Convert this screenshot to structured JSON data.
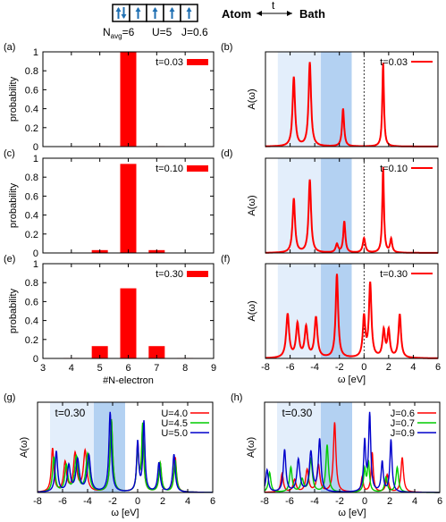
{
  "header": {
    "atom_label": "Atom",
    "bath_label": "Bath",
    "hop_label": "t",
    "params": {
      "navg_base": "N",
      "navg_sub": "avg",
      "navg_val": "=6",
      "u": "U=5",
      "j": "J=0.6"
    },
    "arrows": [
      "up-down",
      "up",
      "up",
      "up",
      "up"
    ]
  },
  "colors": {
    "bar": "#ff0000",
    "spec": "#ff0000",
    "shade_light": "#e3eefb",
    "shade_dark": "#b3d1f2",
    "u40": "#ff0000",
    "u45": "#00cc00",
    "u50": "#0000cc",
    "j06": "#ff0000",
    "j07": "#00cc00",
    "j09": "#0000cc"
  },
  "chart_data": [
    {
      "id": "a",
      "panel_label": "(a)",
      "type": "bar",
      "legend": "t=0.03",
      "ylabel": "probability",
      "categories": [
        4,
        5,
        6,
        7,
        8
      ],
      "values": [
        0.002,
        0.005,
        1.0,
        0.005,
        0.002
      ],
      "xlim": [
        3,
        9
      ],
      "ylim": [
        0,
        1
      ],
      "yticks": [
        0,
        0.2,
        0.4,
        0.6,
        0.8,
        1
      ],
      "xticks": []
    },
    {
      "id": "c",
      "panel_label": "(c)",
      "type": "bar",
      "legend": "t=0.10",
      "ylabel": "probability",
      "categories": [
        4,
        5,
        6,
        7,
        8
      ],
      "values": [
        0.003,
        0.03,
        0.94,
        0.03,
        0.003
      ],
      "xlim": [
        3,
        9
      ],
      "ylim": [
        0,
        1
      ],
      "yticks": [
        0,
        0.2,
        0.4,
        0.6,
        0.8,
        1
      ],
      "xticks": []
    },
    {
      "id": "e",
      "panel_label": "(e)",
      "type": "bar",
      "legend": "t=0.30",
      "ylabel": "probability",
      "xlabel": "#N-electron",
      "categories": [
        4,
        5,
        6,
        7,
        8
      ],
      "values": [
        0.005,
        0.13,
        0.74,
        0.13,
        0.005
      ],
      "xlim": [
        3,
        9
      ],
      "ylim": [
        0,
        1
      ],
      "yticks": [
        0,
        0.2,
        0.4,
        0.6,
        0.8,
        1
      ],
      "xticks": [
        3,
        4,
        5,
        6,
        7,
        8,
        9
      ]
    },
    {
      "id": "b",
      "panel_label": "(b)",
      "type": "line",
      "legend": "t=0.03",
      "ylabel": "A(ω)",
      "xlim": [
        -8,
        6
      ],
      "xticks": [],
      "shade_light": [
        -7.0,
        -3.5
      ],
      "shade_dark": [
        -3.5,
        -1.0
      ],
      "zero_line": 0,
      "series": [
        {
          "peaks": [
            [
              -5.7,
              0.66,
              0.12
            ],
            [
              -4.4,
              0.8,
              0.12
            ],
            [
              -1.7,
              0.36,
              0.1
            ],
            [
              1.55,
              0.8,
              0.08
            ]
          ]
        }
      ]
    },
    {
      "id": "d",
      "panel_label": "(d)",
      "type": "line",
      "legend": "t=0.10",
      "ylabel": "A(ω)",
      "xlim": [
        -8,
        6
      ],
      "xticks": [],
      "shade_light": [
        -7.0,
        -3.5
      ],
      "shade_dark": [
        -3.5,
        -1.0
      ],
      "zero_line": 0,
      "series": [
        {
          "peaks": [
            [
              -5.7,
              0.52,
              0.12
            ],
            [
              -4.4,
              0.7,
              0.12
            ],
            [
              -2.2,
              0.08,
              0.12
            ],
            [
              -1.6,
              0.3,
              0.1
            ],
            [
              0.0,
              0.14,
              0.12
            ],
            [
              1.55,
              0.82,
              0.08
            ],
            [
              2.2,
              0.13,
              0.1
            ]
          ]
        }
      ]
    },
    {
      "id": "f",
      "panel_label": "(f)",
      "type": "line",
      "legend": "t=0.30",
      "ylabel": "A(ω)",
      "xlabel": "ω [eV]",
      "xlim": [
        -8,
        6
      ],
      "xticks": [
        -8,
        -6,
        -4,
        -2,
        0,
        2,
        4,
        6
      ],
      "shade_light": [
        -7.0,
        -3.5
      ],
      "shade_dark": [
        -3.5,
        -1.0
      ],
      "zero_line": 0,
      "series": [
        {
          "peaks": [
            [
              -6.2,
              0.26,
              0.14
            ],
            [
              -5.4,
              0.2,
              0.14
            ],
            [
              -4.7,
              0.18,
              0.14
            ],
            [
              -3.9,
              0.24,
              0.14
            ],
            [
              -2.2,
              0.5,
              0.12
            ],
            [
              0.0,
              0.24,
              0.12
            ],
            [
              0.5,
              0.44,
              0.12
            ],
            [
              1.6,
              0.16,
              0.12
            ],
            [
              2.0,
              0.16,
              0.12
            ],
            [
              2.9,
              0.26,
              0.12
            ]
          ]
        }
      ]
    },
    {
      "id": "g",
      "panel_label": "(g)",
      "type": "line",
      "inset": "t=0.30",
      "ylabel": "A(ω)",
      "xlabel": "ω [eV]",
      "xlim": [
        -8,
        6
      ],
      "xticks": [
        -8,
        -6,
        -4,
        -2,
        0,
        2,
        4,
        6
      ],
      "shade_light": [
        -7.0,
        -3.5
      ],
      "shade_dark": [
        -3.5,
        -1.0
      ],
      "series": [
        {
          "name": "U=4.0",
          "color_key": "u40",
          "peaks": [
            [
              -6.8,
              0.3,
              0.12
            ],
            [
              -5.8,
              0.2,
              0.14
            ],
            [
              -5.0,
              0.26,
              0.16
            ],
            [
              -4.2,
              0.28,
              0.16
            ],
            [
              -2.1,
              0.5,
              0.12
            ],
            [
              0.0,
              0.32,
              0.1
            ],
            [
              0.4,
              0.44,
              0.1
            ],
            [
              1.8,
              0.2,
              0.12
            ],
            [
              3.0,
              0.24,
              0.12
            ]
          ]
        },
        {
          "name": "U=4.5",
          "color_key": "u45",
          "peaks": [
            [
              -6.7,
              0.24,
              0.12
            ],
            [
              -5.7,
              0.18,
              0.14
            ],
            [
              -4.9,
              0.24,
              0.16
            ],
            [
              -4.0,
              0.26,
              0.16
            ],
            [
              -2.1,
              0.5,
              0.12
            ],
            [
              0.0,
              0.3,
              0.1
            ],
            [
              0.4,
              0.46,
              0.1
            ],
            [
              1.8,
              0.2,
              0.12
            ],
            [
              3.0,
              0.22,
              0.12
            ]
          ]
        },
        {
          "name": "U=5.0",
          "color_key": "u50",
          "peaks": [
            [
              -6.5,
              0.28,
              0.12
            ],
            [
              -5.5,
              0.18,
              0.14
            ],
            [
              -4.8,
              0.22,
              0.16
            ],
            [
              -3.9,
              0.25,
              0.16
            ],
            [
              -2.2,
              0.55,
              0.12
            ],
            [
              0.0,
              0.34,
              0.1
            ],
            [
              0.5,
              0.48,
              0.1
            ],
            [
              1.7,
              0.2,
              0.12
            ],
            [
              2.9,
              0.26,
              0.12
            ]
          ]
        }
      ]
    },
    {
      "id": "h",
      "panel_label": "(h)",
      "type": "line",
      "inset": "t=0.30",
      "ylabel": "A(ω)",
      "xlabel": "ω [eV]",
      "xlim": [
        -8,
        6
      ],
      "xticks": [
        -8,
        -6,
        -4,
        -2,
        0,
        2,
        4,
        6
      ],
      "shade_light": [
        -7.0,
        -3.5
      ],
      "shade_dark": [
        -3.5,
        -1.0
      ],
      "series": [
        {
          "name": "J=0.6",
          "color_key": "j06",
          "peaks": [
            [
              -6.6,
              0.15,
              0.12
            ],
            [
              -5.6,
              0.1,
              0.14
            ],
            [
              -4.6,
              0.18,
              0.14
            ],
            [
              -3.7,
              0.22,
              0.14
            ],
            [
              -2.4,
              0.56,
              0.12
            ],
            [
              -0.2,
              0.12,
              0.1
            ],
            [
              0.6,
              0.32,
              0.1
            ],
            [
              1.8,
              0.14,
              0.12
            ],
            [
              3.0,
              0.28,
              0.12
            ]
          ]
        },
        {
          "name": "J=0.7",
          "color_key": "j07",
          "peaks": [
            [
              -7.6,
              0.16,
              0.12
            ],
            [
              -5.9,
              0.2,
              0.12
            ],
            [
              -5.0,
              0.1,
              0.14
            ],
            [
              -4.3,
              0.26,
              0.14
            ],
            [
              -3.0,
              0.38,
              0.12
            ],
            [
              0.0,
              0.18,
              0.1
            ],
            [
              0.3,
              0.24,
              0.1
            ],
            [
              1.7,
              0.12,
              0.12
            ],
            [
              2.6,
              0.2,
              0.12
            ]
          ]
        },
        {
          "name": "J=0.9",
          "color_key": "j09",
          "peaks": [
            [
              -7.8,
              0.18,
              0.12
            ],
            [
              -6.4,
              0.34,
              0.12
            ],
            [
              -5.3,
              0.26,
              0.14
            ],
            [
              -4.3,
              0.32,
              0.14
            ],
            [
              -3.6,
              0.42,
              0.12
            ],
            [
              0.0,
              0.4,
              0.1
            ],
            [
              0.4,
              0.62,
              0.1
            ],
            [
              1.4,
              0.24,
              0.1
            ],
            [
              2.1,
              0.42,
              0.1
            ]
          ]
        }
      ]
    }
  ]
}
